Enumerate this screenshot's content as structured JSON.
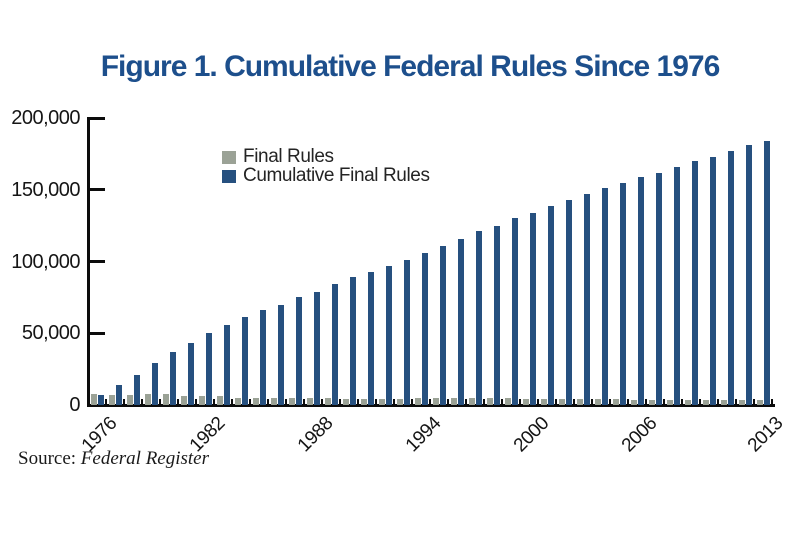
{
  "title": "Figure 1. Cumulative Federal Rules Since 1976",
  "source": {
    "prefix": "Source: ",
    "publication": "Federal Register"
  },
  "legend": [
    {
      "label": "Final Rules",
      "color": "#9ba296"
    },
    {
      "label": "Cumulative Final Rules",
      "color": "#26507f"
    }
  ],
  "colors": {
    "title_blue": "#1d4f8c",
    "bar_blue": "#26507f",
    "bar_gray": "#9ba296",
    "axis_black": "#0c0c0c"
  },
  "chart_data": {
    "type": "bar",
    "title": "Figure 1. Cumulative Federal Rules Since 1976",
    "categories": [
      "1976",
      "1977",
      "1978",
      "1979",
      "1980",
      "1981",
      "1982",
      "1983",
      "1984",
      "1985",
      "1986",
      "1987",
      "1988",
      "1989",
      "1990",
      "1991",
      "1992",
      "1993",
      "1994",
      "1995",
      "1996",
      "1997",
      "1998",
      "1999",
      "2000",
      "2001",
      "2002",
      "2003",
      "2004",
      "2005",
      "2006",
      "2007",
      "2008",
      "2009",
      "2010",
      "2011",
      "2012",
      "2013"
    ],
    "series": [
      {
        "name": "Final Rules",
        "color": "#9ba296",
        "values": [
          7400,
          7000,
          7000,
          7600,
          7700,
          6500,
          6300,
          6000,
          5200,
          4800,
          4600,
          4600,
          4700,
          4700,
          4300,
          4400,
          4200,
          4400,
          4900,
          4700,
          4900,
          4600,
          4900,
          4700,
          4300,
          4100,
          4200,
          4100,
          4100,
          3900,
          3700,
          3600,
          3800,
          3500,
          3600,
          3800,
          3700,
          3700
        ]
      },
      {
        "name": "Cumulative Final Rules",
        "color": "#26507f",
        "values": [
          7000,
          14000,
          21000,
          29000,
          37000,
          43000,
          50000,
          56000,
          61000,
          66000,
          70000,
          75000,
          79000,
          84000,
          89000,
          93000,
          97000,
          101000,
          106000,
          111000,
          116000,
          121000,
          125000,
          130000,
          134000,
          139000,
          143000,
          147000,
          151000,
          155000,
          159000,
          162000,
          166000,
          170000,
          173000,
          177000,
          181000,
          184000
        ]
      }
    ],
    "xlabel": "",
    "ylabel": "",
    "ylim": [
      0,
      200000
    ],
    "yticks": [
      0,
      50000,
      100000,
      150000,
      200000
    ],
    "ytick_labels": [
      "0",
      "50,000",
      "100,000",
      "150,000",
      "200,000"
    ],
    "xtick_labels_shown": [
      "1976",
      "1982",
      "1988",
      "1994",
      "2000",
      "2006",
      "2013"
    ],
    "xtick_indices": [
      0,
      6,
      12,
      18,
      24,
      30,
      37
    ],
    "grid": false,
    "legend_position": "inside-top-left-of-plot",
    "tick_style": "inside"
  }
}
